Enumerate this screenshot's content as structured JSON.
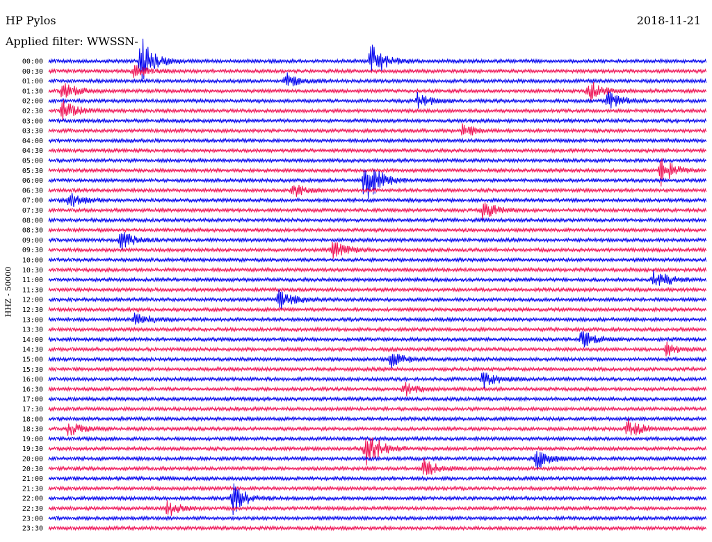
{
  "header": {
    "station": "HP Pylos",
    "date": "2018-11-21",
    "filter_label": "Applied filter: WWSSN-"
  },
  "chart_data": {
    "type": "line",
    "title": "HP Pylos",
    "subtitle": "Applied filter: WWSSN-",
    "date": "2018-11-21",
    "ylabel": "HHZ - 50000",
    "row_labels": [
      "00:00",
      "00:30",
      "01:00",
      "01:30",
      "02:00",
      "02:30",
      "03:00",
      "03:30",
      "04:00",
      "04:30",
      "05:00",
      "05:30",
      "06:00",
      "06:30",
      "07:00",
      "07:30",
      "08:00",
      "08:30",
      "09:00",
      "09:30",
      "10:00",
      "10:30",
      "11:00",
      "11:30",
      "12:00",
      "12:30",
      "13:00",
      "13:30",
      "14:00",
      "14:30",
      "15:00",
      "15:30",
      "16:00",
      "16:30",
      "17:00",
      "17:30",
      "18:00",
      "18:30",
      "19:00",
      "19:30",
      "20:00",
      "20:30",
      "21:00",
      "21:30",
      "22:00",
      "22:30",
      "23:00",
      "23:30"
    ],
    "series_colors": [
      "#0000ee",
      "#ee1155"
    ],
    "events": [
      {
        "row": 0,
        "pos": 0.14,
        "amp": 6
      },
      {
        "row": 0,
        "pos": 0.49,
        "amp": 5
      },
      {
        "row": 1,
        "pos": 0.13,
        "amp": 2
      },
      {
        "row": 2,
        "pos": 0.36,
        "amp": 2
      },
      {
        "row": 3,
        "pos": 0.02,
        "amp": 2.5
      },
      {
        "row": 3,
        "pos": 0.82,
        "amp": 3
      },
      {
        "row": 4,
        "pos": 0.56,
        "amp": 2
      },
      {
        "row": 4,
        "pos": 0.85,
        "amp": 2.5
      },
      {
        "row": 5,
        "pos": 0.02,
        "amp": 3
      },
      {
        "row": 7,
        "pos": 0.63,
        "amp": 2
      },
      {
        "row": 11,
        "pos": 0.93,
        "amp": 4
      },
      {
        "row": 12,
        "pos": 0.48,
        "amp": 7
      },
      {
        "row": 13,
        "pos": 0.37,
        "amp": 2
      },
      {
        "row": 14,
        "pos": 0.03,
        "amp": 2
      },
      {
        "row": 15,
        "pos": 0.66,
        "amp": 2.5
      },
      {
        "row": 18,
        "pos": 0.11,
        "amp": 3
      },
      {
        "row": 19,
        "pos": 0.43,
        "amp": 3
      },
      {
        "row": 22,
        "pos": 0.92,
        "amp": 3
      },
      {
        "row": 24,
        "pos": 0.35,
        "amp": 3
      },
      {
        "row": 26,
        "pos": 0.13,
        "amp": 2
      },
      {
        "row": 28,
        "pos": 0.81,
        "amp": 2.5
      },
      {
        "row": 29,
        "pos": 0.94,
        "amp": 2
      },
      {
        "row": 30,
        "pos": 0.52,
        "amp": 2
      },
      {
        "row": 32,
        "pos": 0.66,
        "amp": 2.5
      },
      {
        "row": 33,
        "pos": 0.54,
        "amp": 2
      },
      {
        "row": 37,
        "pos": 0.03,
        "amp": 2
      },
      {
        "row": 37,
        "pos": 0.88,
        "amp": 2.5
      },
      {
        "row": 39,
        "pos": 0.48,
        "amp": 6
      },
      {
        "row": 40,
        "pos": 0.74,
        "amp": 3
      },
      {
        "row": 41,
        "pos": 0.57,
        "amp": 2.5
      },
      {
        "row": 44,
        "pos": 0.28,
        "amp": 4
      },
      {
        "row": 45,
        "pos": 0.18,
        "amp": 2
      }
    ]
  }
}
